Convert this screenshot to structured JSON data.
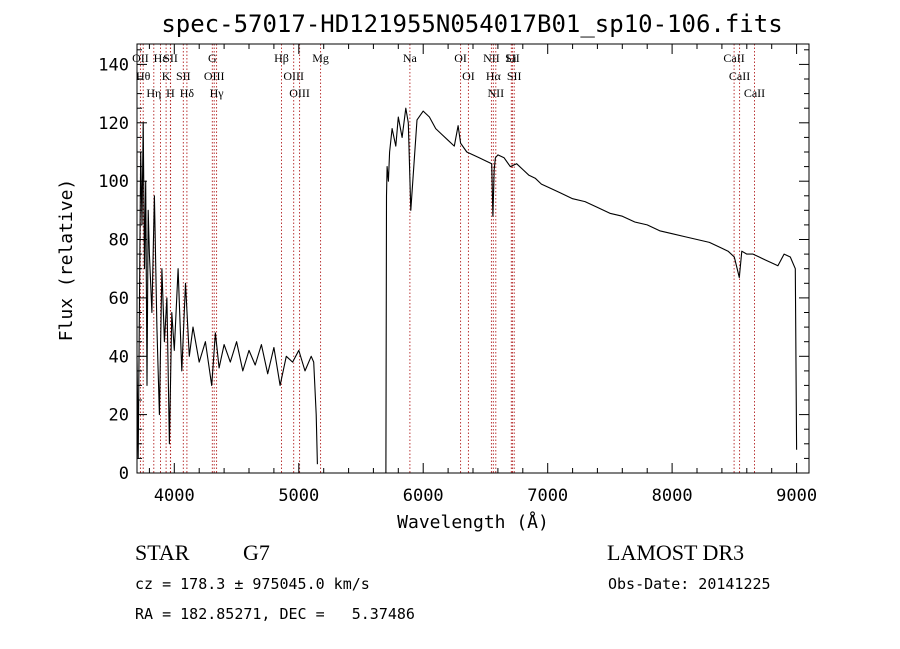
{
  "chart_data": {
    "type": "line",
    "title": "spec-57017-HD121955N054017B01_sp10-106.fits",
    "xlabel": "Wavelength (Å)",
    "ylabel": "Flux (relative)",
    "xlim": [
      3700,
      9100
    ],
    "ylim": [
      0,
      147
    ],
    "xticks": [
      4000,
      5000,
      6000,
      7000,
      8000,
      9000
    ],
    "yticks": [
      0,
      20,
      40,
      60,
      80,
      100,
      120,
      140
    ],
    "grid": false,
    "gap": [
      5150,
      5700
    ],
    "series": [
      {
        "x": [
          3700,
          3710,
          3720,
          3730,
          3740,
          3750,
          3760,
          3770,
          3780,
          3790,
          3800,
          3820,
          3840,
          3860,
          3880,
          3900,
          3920,
          3940,
          3960,
          3980,
          4000,
          4030,
          4060,
          4090,
          4120,
          4150,
          4200,
          4250,
          4300,
          4330,
          4360,
          4400,
          4450,
          4500,
          4550,
          4600,
          4650,
          4700,
          4750,
          4800,
          4850,
          4900,
          4950,
          5000,
          5050,
          5100,
          5120,
          5140,
          5150,
          5700,
          5705,
          5710,
          5720,
          5730,
          5750,
          5780,
          5800,
          5830,
          5860,
          5880,
          5900,
          5950,
          6000,
          6050,
          6100,
          6150,
          6200,
          6250,
          6280,
          6300,
          6350,
          6400,
          6450,
          6500,
          6550,
          6560,
          6570,
          6580,
          6600,
          6650,
          6700,
          6750,
          6800,
          6850,
          6900,
          6950,
          7000,
          7100,
          7200,
          7300,
          7400,
          7500,
          7600,
          7700,
          7800,
          7900,
          8000,
          8100,
          8200,
          8300,
          8400,
          8450,
          8500,
          8540,
          8560,
          8600,
          8650,
          8700,
          8750,
          8800,
          8850,
          8900,
          8950,
          8990,
          9000
        ],
        "y": [
          40,
          5,
          60,
          110,
          85,
          120,
          70,
          100,
          30,
          90,
          75,
          55,
          95,
          50,
          20,
          70,
          45,
          60,
          10,
          55,
          42,
          70,
          35,
          65,
          40,
          50,
          38,
          45,
          30,
          48,
          36,
          44,
          38,
          45,
          35,
          42,
          37,
          44,
          34,
          43,
          30,
          40,
          38,
          42,
          35,
          40,
          38,
          20,
          3,
          0,
          95,
          105,
          100,
          110,
          118,
          112,
          122,
          115,
          125,
          120,
          90,
          121,
          124,
          122,
          118,
          116,
          114,
          112,
          119,
          113,
          110,
          109,
          108,
          107,
          106,
          88,
          104,
          108,
          109,
          108,
          105,
          106,
          104,
          102,
          101,
          99,
          98,
          96,
          94,
          93,
          91,
          89,
          88,
          86,
          85,
          83,
          82,
          81,
          80,
          79,
          77,
          76,
          74,
          67,
          76,
          75,
          75,
          74,
          73,
          72,
          71,
          75,
          74,
          70,
          8
        ]
      }
    ],
    "spectral_lines": [
      {
        "label": "OII",
        "x": 3727
      },
      {
        "label": "Hθ",
        "x": 3750
      },
      {
        "label": "Hη",
        "x": 3835
      },
      {
        "label": "Hε",
        "x": 3889
      },
      {
        "label": "K",
        "x": 3934
      },
      {
        "label": "SII",
        "x": 3970
      },
      {
        "label": "H",
        "x": 3968
      },
      {
        "label": "Hδ",
        "x": 4101
      },
      {
        "label": "SII",
        "x": 4072
      },
      {
        "label": "OIII",
        "x": 4320
      },
      {
        "label": "Hγ",
        "x": 4340
      },
      {
        "label": "G",
        "x": 4305
      },
      {
        "label": "Hβ",
        "x": 4861
      },
      {
        "label": "OIII",
        "x": 4959
      },
      {
        "label": "OIII",
        "x": 5007
      },
      {
        "label": "Mg",
        "x": 5175
      },
      {
        "label": "Na",
        "x": 5893
      },
      {
        "label": "OI",
        "x": 6300
      },
      {
        "label": "OI",
        "x": 6363
      },
      {
        "label": "Hα",
        "x": 6563
      },
      {
        "label": "NII",
        "x": 6548
      },
      {
        "label": "NII",
        "x": 6583
      },
      {
        "label": "SII",
        "x": 6717
      },
      {
        "label": "Li",
        "x": 6708
      },
      {
        "label": "SII",
        "x": 6731
      },
      {
        "label": "CaII",
        "x": 8498
      },
      {
        "label": "CaII",
        "x": 8542
      },
      {
        "label": "CaII",
        "x": 8662
      }
    ]
  },
  "info": {
    "object_class": "STAR",
    "subclass": "G7",
    "survey": "LAMOST DR3",
    "cz": "cz = 178.3 ± 975045.0 km/s",
    "obs_date": "Obs-Date: 20141225",
    "radec": "RA = 182.85271, DEC =   5.37486"
  },
  "colors": {
    "spectrum": "#000000",
    "line_markers": "#b22222"
  }
}
